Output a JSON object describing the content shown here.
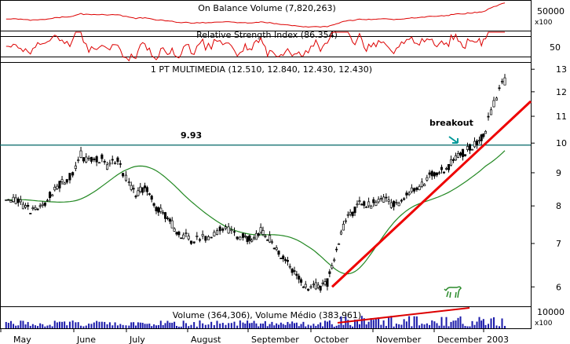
{
  "chart_data": [
    {
      "type": "line",
      "panel": "on_balance_volume",
      "title": "On Balance Volume (7,820,263)",
      "y_ticks": [
        "50000"
      ],
      "scale_note": "x100",
      "color": "#dd0000"
    },
    {
      "type": "line",
      "panel": "relative_strength_index",
      "title": "Relative Strength Index (86.354)",
      "y_ticks": [
        "50"
      ],
      "color": "#dd0000"
    },
    {
      "type": "candlestick",
      "panel": "price",
      "title": "1 PT MULTIMEDIA (12.510, 12.840, 12.430, 12.430)",
      "y_ticks": [
        "13",
        "12",
        "11",
        "10",
        "9",
        "8",
        "7",
        "6"
      ],
      "scale": "log",
      "ylim": [
        5.6,
        13.3
      ],
      "x_month_labels": [
        "May",
        "June",
        "July",
        "August",
        "September",
        "October",
        "November",
        "December",
        "2003"
      ],
      "horizontal_line": {
        "value": 9.93,
        "label": "9.93",
        "color": "#006666"
      },
      "annotation": {
        "text": "breakout",
        "color": "#000000",
        "arrow_color": "#009999"
      },
      "trendline": {
        "from": [
          "October",
          6.0
        ],
        "to": [
          "2003",
          11.6
        ],
        "color": "#ee0000"
      },
      "moving_average_color": "#228822",
      "price_path": [
        [
          "May",
          8.3
        ],
        [
          "May",
          8.1
        ],
        [
          "May",
          7.9
        ],
        [
          "May",
          8.0
        ],
        [
          "May",
          8.5
        ],
        [
          "May",
          8.8
        ],
        [
          "June",
          9.1
        ],
        [
          "June",
          9.6
        ],
        [
          "June",
          9.4
        ],
        [
          "June",
          9.5
        ],
        [
          "June",
          9.4
        ],
        [
          "June",
          9.5
        ],
        [
          "June",
          9.2
        ],
        [
          "June",
          9.3
        ],
        [
          "June",
          9.4
        ],
        [
          "June",
          9.0
        ],
        [
          "July",
          8.6
        ],
        [
          "July",
          8.3
        ],
        [
          "July",
          8.5
        ],
        [
          "July",
          8.4
        ],
        [
          "July",
          7.9
        ],
        [
          "July",
          7.8
        ],
        [
          "July",
          7.6
        ],
        [
          "July",
          7.3
        ],
        [
          "July",
          7.2
        ],
        [
          "August",
          7.1
        ],
        [
          "August",
          7.1
        ],
        [
          "August",
          7.2
        ],
        [
          "August",
          7.3
        ],
        [
          "August",
          7.4
        ],
        [
          "August",
          7.2
        ],
        [
          "August",
          7.2
        ],
        [
          "September",
          7.1
        ],
        [
          "September",
          7.3
        ],
        [
          "September",
          7.1
        ],
        [
          "September",
          6.8
        ],
        [
          "September",
          6.5
        ],
        [
          "September",
          6.2
        ],
        [
          "September",
          6.0
        ],
        [
          "October",
          6.0
        ],
        [
          "October",
          6.0
        ],
        [
          "October",
          6.1
        ],
        [
          "October",
          6.6
        ],
        [
          "October",
          7.3
        ],
        [
          "October",
          7.7
        ],
        [
          "October",
          7.9
        ],
        [
          "October",
          8.1
        ],
        [
          "October",
          8.0
        ],
        [
          "November",
          8.1
        ],
        [
          "November",
          8.2
        ],
        [
          "November",
          8.0
        ],
        [
          "November",
          8.1
        ],
        [
          "November",
          8.3
        ],
        [
          "November",
          8.5
        ],
        [
          "November",
          8.6
        ],
        [
          "November",
          8.9
        ],
        [
          "December",
          9.0
        ],
        [
          "December",
          9.1
        ],
        [
          "December",
          9.3
        ],
        [
          "December",
          9.6
        ],
        [
          "December",
          9.7
        ],
        [
          "December",
          9.9
        ],
        [
          "December",
          10.0
        ],
        [
          "2003",
          10.5
        ],
        [
          "2003",
          11.2
        ],
        [
          "2003",
          11.8
        ],
        [
          "2003",
          12.4
        ],
        [
          "2003",
          12.5
        ]
      ]
    },
    {
      "type": "bar",
      "panel": "volume",
      "title": "Volume (364,306), Volume Médio (383,961)",
      "y_ticks": [
        "10000"
      ],
      "scale_note": "x100",
      "bar_color": "#1a1aaa",
      "average_line_color": "#dd0000"
    }
  ]
}
